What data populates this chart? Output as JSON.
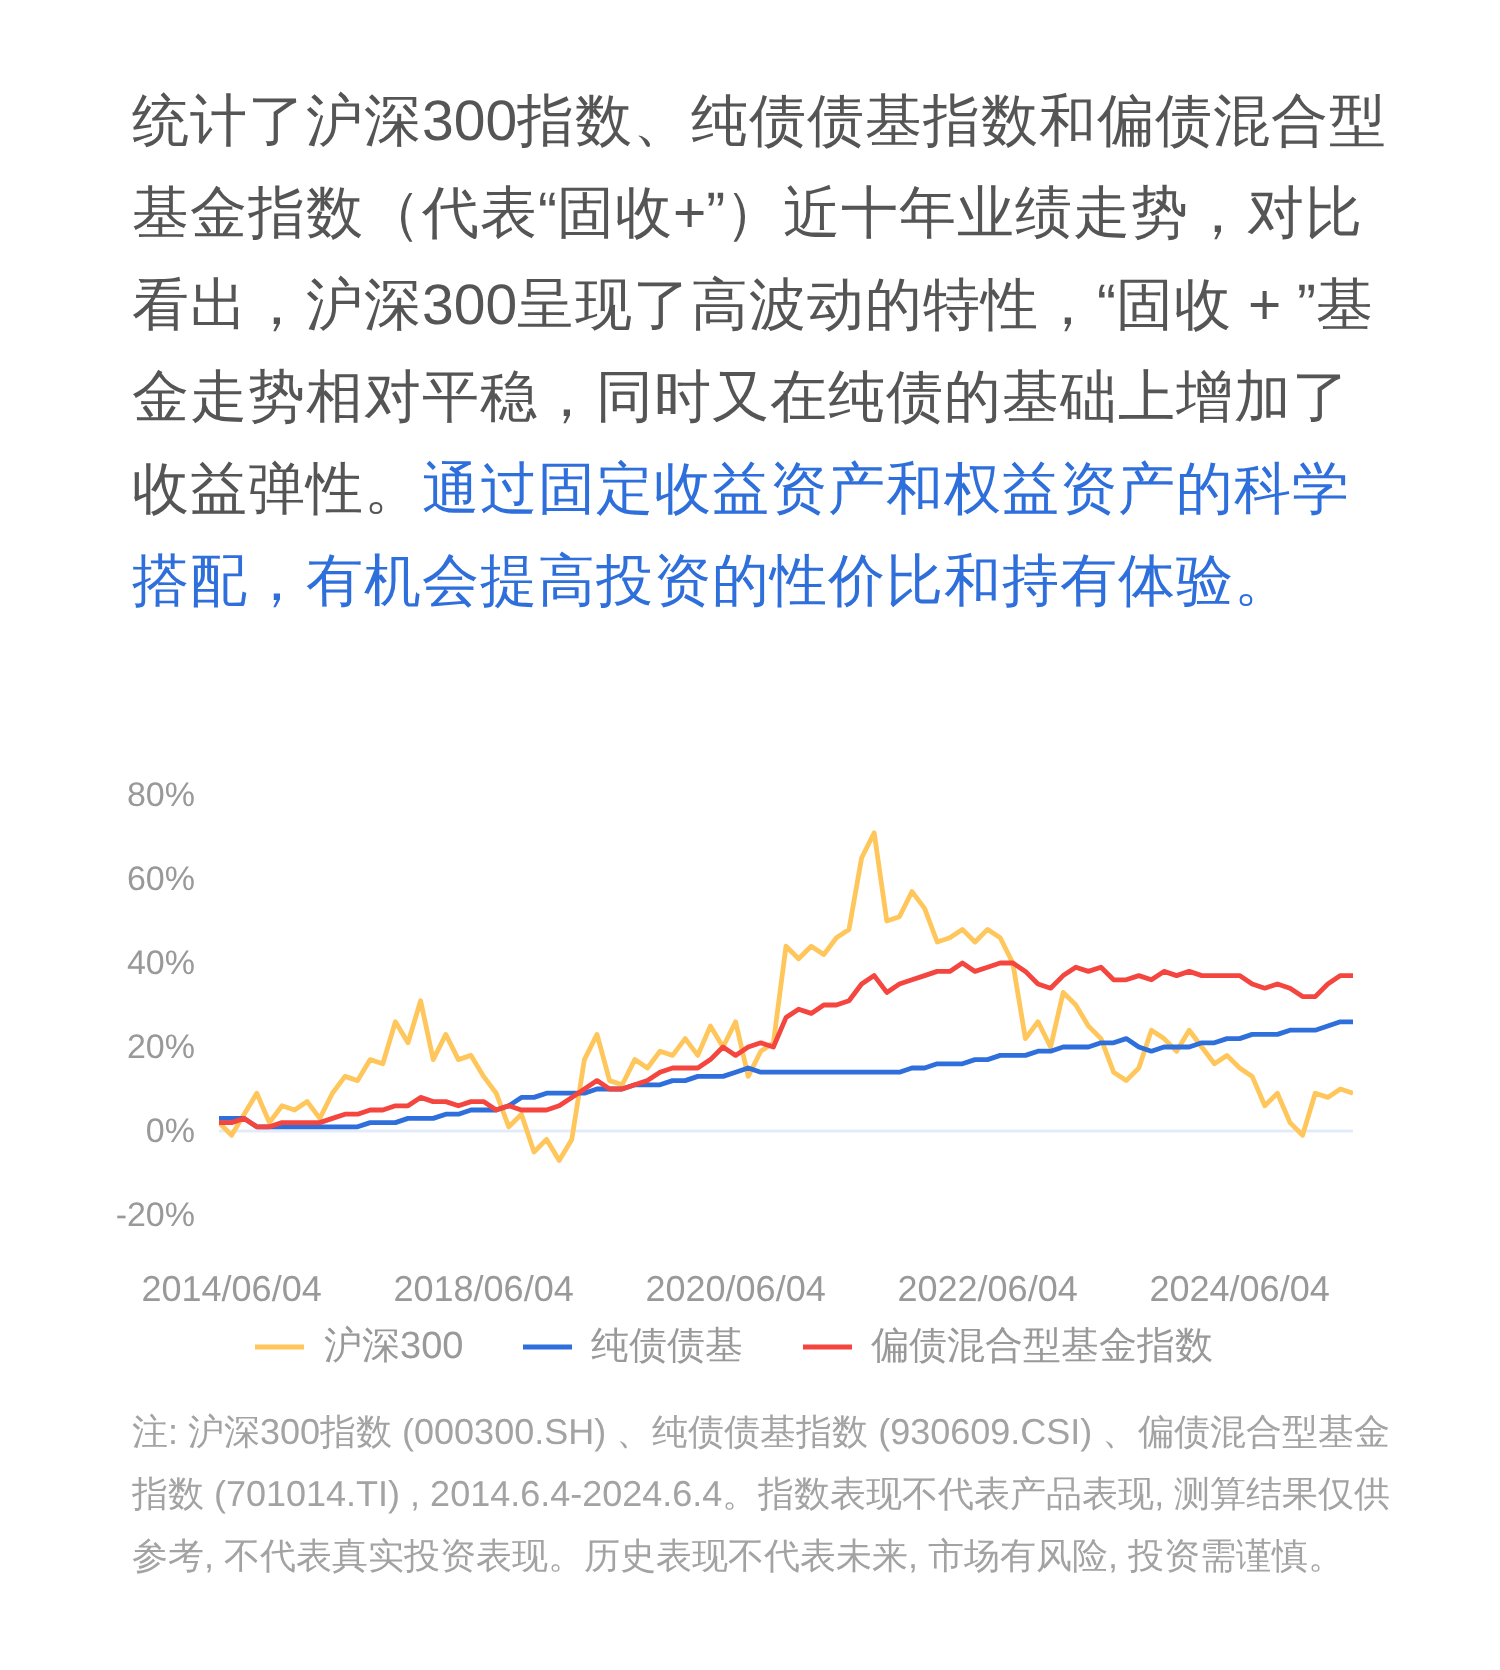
{
  "chart_data": {
    "type": "line",
    "title": "统计了沪深300指数、纯债债基指数和偏债混合型基金指数（代表“固收+”）近十年业绩走势，对比看出，沪深300呈现了高波动的特性，“固收 + ”基金走势相对平稳，同时又在纯债的基础上增加了收益弹性。",
    "subtitle": "通过固定收益资产和权益资产的科学搭配，有机会提高投资的性价比和持有体验。",
    "annotations": [
      "注: 沪深300指数 (000300.SH) 、纯债债基指数 (930609.CSI) 、偏债混合型基金指数 (701014.TI) , 2014.6.4-2024.6.4。指数表现不代表产品表现, 测算结果仅供参考, 不代表真实投资表现。历史表现不代表未来, 市场有风险, 投资需谨慎。"
    ],
    "categories": [
      null,
      "2014/06/04",
      null,
      null,
      null,
      null,
      null,
      null,
      null,
      null,
      null,
      null,
      null,
      null,
      null,
      null,
      null,
      null,
      null,
      null,
      null,
      "2018/06/04",
      null,
      null,
      null,
      null,
      null,
      null,
      null,
      null,
      null,
      null,
      null,
      null,
      null,
      null,
      null,
      null,
      null,
      null,
      null,
      "2020/06/04",
      null,
      null,
      null,
      null,
      null,
      null,
      null,
      null,
      null,
      null,
      null,
      null,
      null,
      null,
      null,
      null,
      null,
      null,
      null,
      "2022/06/04",
      null,
      null,
      null,
      null,
      null,
      null,
      null,
      null,
      null,
      null,
      null,
      null,
      null,
      null,
      null,
      null,
      null,
      null,
      null,
      "2024/06/04",
      null,
      null,
      null,
      null,
      null,
      null,
      null,
      null,
      null
    ],
    "series": [
      {
        "name": "沪深300",
        "color": "#ffc65c",
        "values": [
          2,
          -1,
          4,
          9,
          2,
          6,
          5,
          7,
          3,
          9,
          13,
          12,
          17,
          16,
          26,
          21,
          31,
          17,
          23,
          17,
          18,
          13,
          9,
          1,
          4,
          -5,
          -2,
          -7,
          -2,
          17,
          23,
          12,
          11,
          17,
          15,
          19,
          18,
          22,
          18,
          25,
          20,
          26,
          13,
          19,
          21,
          44,
          41,
          44,
          42,
          46,
          48,
          65,
          71,
          50,
          51,
          57,
          53,
          45,
          46,
          48,
          45,
          48,
          46,
          40,
          22,
          26,
          20,
          33,
          30,
          25,
          22,
          14,
          12,
          15,
          24,
          22,
          19,
          24,
          20,
          16,
          18,
          15,
          13,
          6,
          9,
          2,
          -1,
          9,
          8,
          10,
          9
        ]
      },
      {
        "name": "纯债债基",
        "color": "#2e6fdc",
        "values": [
          3,
          3,
          3,
          1,
          1,
          1,
          1,
          1,
          1,
          1,
          1,
          1,
          2,
          2,
          2,
          3,
          3,
          3,
          4,
          4,
          5,
          5,
          5,
          6,
          8,
          8,
          9,
          9,
          9,
          9,
          10,
          10,
          10,
          11,
          11,
          11,
          12,
          12,
          13,
          13,
          13,
          14,
          15,
          14,
          14,
          14,
          14,
          14,
          14,
          14,
          14,
          14,
          14,
          14,
          14,
          15,
          15,
          16,
          16,
          16,
          17,
          17,
          18,
          18,
          18,
          19,
          19,
          20,
          20,
          20,
          21,
          21,
          22,
          20,
          19,
          20,
          20,
          20,
          21,
          21,
          22,
          22,
          23,
          23,
          23,
          24,
          24,
          24,
          25,
          26,
          26
        ]
      },
      {
        "name": "偏债混合型基金指数",
        "color": "#f4453f",
        "values": [
          2,
          2,
          3,
          1,
          1,
          2,
          2,
          2,
          2,
          3,
          4,
          4,
          5,
          5,
          6,
          6,
          8,
          7,
          7,
          6,
          7,
          7,
          5,
          6,
          5,
          5,
          5,
          6,
          8,
          10,
          12,
          10,
          10,
          11,
          12,
          14,
          15,
          15,
          15,
          17,
          20,
          18,
          20,
          21,
          20,
          27,
          29,
          28,
          30,
          30,
          31,
          35,
          37,
          33,
          35,
          36,
          37,
          38,
          38,
          40,
          38,
          39,
          40,
          40,
          38,
          35,
          34,
          37,
          39,
          38,
          39,
          36,
          36,
          37,
          36,
          38,
          37,
          38,
          37,
          37,
          37,
          37,
          35,
          34,
          35,
          34,
          32,
          32,
          35,
          37,
          37
        ]
      }
    ],
    "ylim": [
      -20,
      80
    ],
    "yticks": [
      {
        "value": -20,
        "label": "-20%"
      },
      {
        "value": 0,
        "label": "0%"
      },
      {
        "value": 20,
        "label": "20%"
      },
      {
        "value": 40,
        "label": "40%"
      },
      {
        "value": 60,
        "label": "60%"
      },
      {
        "value": 80,
        "label": "80%"
      }
    ],
    "ref_lines": [
      {
        "axis": "y",
        "value": 0,
        "color": "#e3ebfa"
      }
    ],
    "legend": "bottom"
  }
}
